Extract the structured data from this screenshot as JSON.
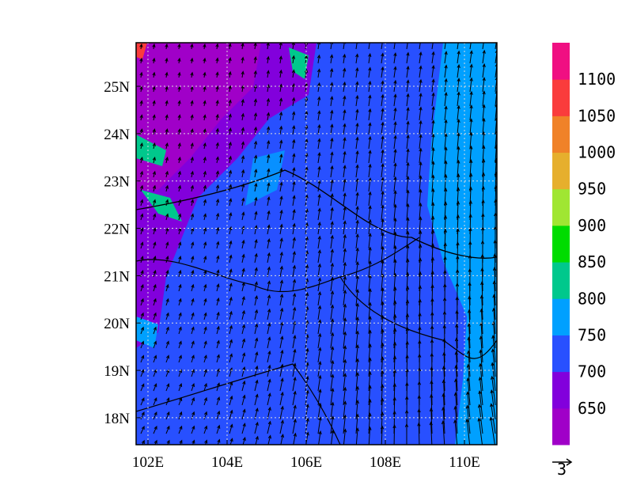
{
  "map": {
    "lonlim": [
      101.7,
      110.82
    ],
    "latlim": [
      17.43,
      25.92
    ],
    "lon_ticks": [
      {
        "value": 102,
        "label": "102E"
      },
      {
        "value": 104,
        "label": "104E"
      },
      {
        "value": 106,
        "label": "106E"
      },
      {
        "value": 108,
        "label": "108E"
      },
      {
        "value": 110,
        "label": "110E"
      }
    ],
    "lat_ticks": [
      {
        "value": 18,
        "label": "18N"
      },
      {
        "value": 19,
        "label": "19N"
      },
      {
        "value": 20,
        "label": "20N"
      },
      {
        "value": 21,
        "label": "21N"
      },
      {
        "value": 22,
        "label": "22N"
      },
      {
        "value": 23,
        "label": "23N"
      },
      {
        "value": 24,
        "label": "24N"
      },
      {
        "value": 25,
        "label": "25N"
      }
    ],
    "colorbar": {
      "levels": [
        650,
        700,
        750,
        800,
        850,
        900,
        950,
        1000,
        1050,
        1100
      ],
      "colors": [
        "#a000c8",
        "#8200dc",
        "#2850ff",
        "#00a0ff",
        "#00c88c",
        "#00dc00",
        "#a0e632",
        "#e6af2d",
        "#f08228",
        "#fa3c3c",
        "#f00f82"
      ]
    },
    "reference_vector": 3
  }
}
